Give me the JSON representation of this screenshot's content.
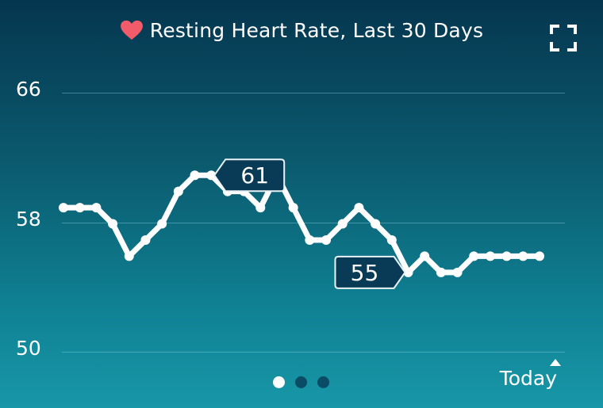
{
  "header": {
    "title": "Resting Heart Rate, Last 30 Days",
    "heart_icon": "heart-icon",
    "fullscreen_icon": "fullscreen-icon"
  },
  "colors": {
    "heart": "#f25c6a",
    "line": "#ffffff",
    "callout_bg": "#0a3b56",
    "callout_border": "#e9f3f6",
    "dot_inactive": "#0a4c66"
  },
  "chart_data": {
    "type": "line",
    "y_ticks": [
      "66",
      "58",
      "50"
    ],
    "ylim": [
      50,
      66
    ],
    "grid": true,
    "x_label_end": "Today",
    "series": [
      {
        "values": [
          58.9,
          58.9,
          58.9,
          57.9,
          55.9,
          56.9,
          57.9,
          59.9,
          60.9,
          60.9,
          59.9,
          59.9,
          58.9,
          60.9,
          58.9,
          56.9,
          56.9,
          57.9,
          58.9,
          57.9,
          56.9,
          54.9,
          55.9,
          54.9,
          54.9,
          55.9,
          55.9,
          55.9,
          55.9,
          55.9
        ]
      }
    ],
    "annotations": [
      {
        "label": "61",
        "point_index": 9,
        "direction": "right"
      },
      {
        "label": "55",
        "point_index": 21,
        "direction": "left"
      }
    ]
  },
  "pager": {
    "count": 3,
    "active_index": 0
  }
}
